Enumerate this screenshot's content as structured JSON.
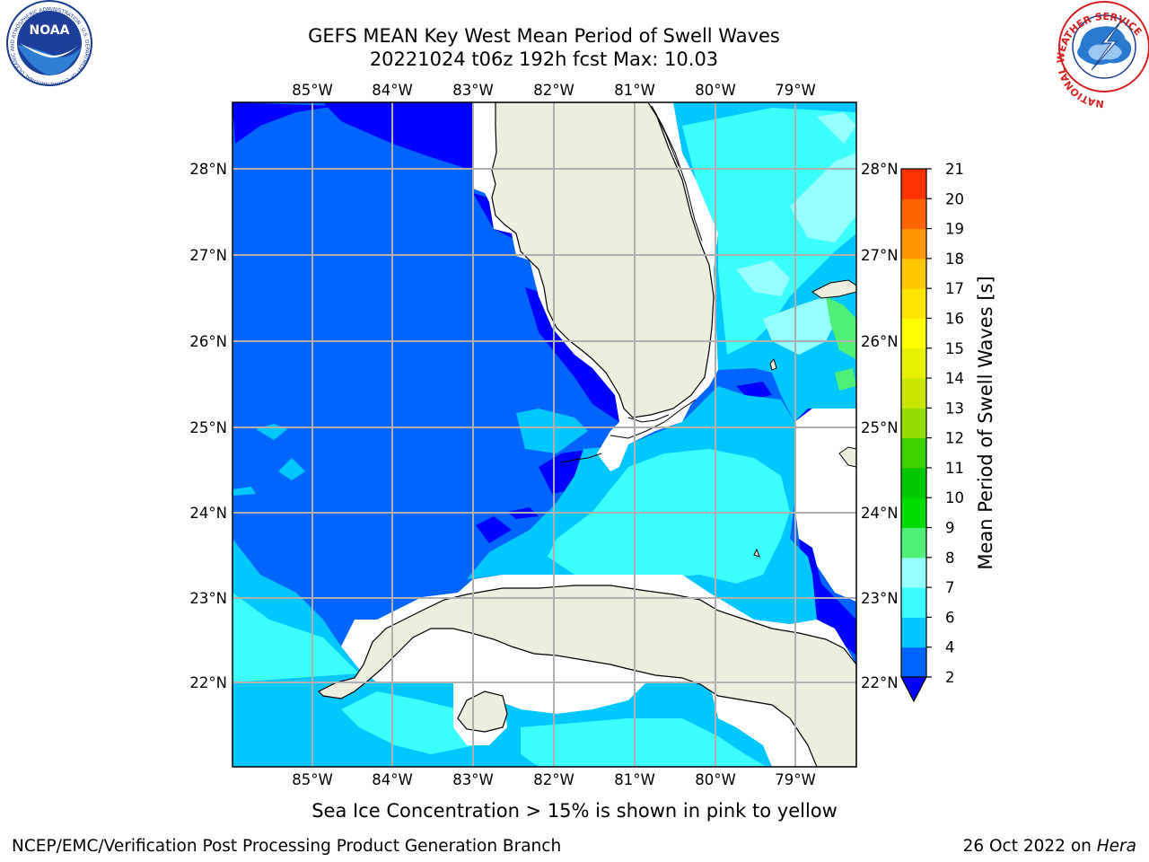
{
  "header": {
    "title_line1": "GEFS MEAN Key West Mean Period of Swell Waves",
    "title_line2": "20221024 t06z 192h fcst   Max: 10.03"
  },
  "logos": {
    "noaa_text": "NOAA",
    "noaa_ring": "NATIONAL OCEANIC AND ATMOSPHERIC ADMINISTRATION · U.S. DEPARTMENT OF COMMERCE",
    "nws_ring": "NATIONAL WEATHER SERVICE"
  },
  "map": {
    "lon_labels": [
      "85°W",
      "84°W",
      "83°W",
      "82°W",
      "81°W",
      "80°W",
      "79°W"
    ],
    "lat_labels": [
      "28°N",
      "27°N",
      "26°N",
      "25°N",
      "24°N",
      "23°N",
      "22°N"
    ],
    "colors": {
      "land": "#eeeedf",
      "nodata": "#ffffff",
      "grid": "#b0b0b0"
    }
  },
  "colorbar": {
    "label": "Mean Period of Swell Waves [s]",
    "ticks": [
      "2",
      "4",
      "6",
      "7",
      "8",
      "9",
      "10",
      "11",
      "12",
      "13",
      "14",
      "15",
      "16",
      "17",
      "18",
      "19",
      "20",
      "21"
    ],
    "colors": [
      "#0064ff",
      "#00c8ff",
      "#3cffff",
      "#96ffff",
      "#50f078",
      "#00dc00",
      "#00c800",
      "#3cd200",
      "#96dc00",
      "#c8e600",
      "#e6f000",
      "#ffff00",
      "#ffe600",
      "#ffc800",
      "#ff9600",
      "#ff6400",
      "#ff3200"
    ],
    "under_color": "#0000ff"
  },
  "footer": {
    "subnote": "Sea Ice Concentration > 15% is shown in pink to yellow",
    "credit": "NCEP/EMC/Verification Post Processing Product Generation Branch",
    "date": "26 Oct 2022 on",
    "host": "Hera"
  }
}
